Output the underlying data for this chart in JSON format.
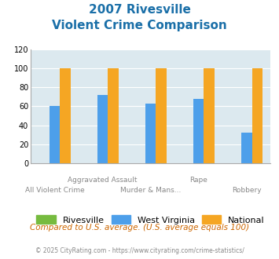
{
  "title_line1": "2007 Rivesville",
  "title_line2": "Violent Crime Comparison",
  "categories": [
    "All Violent Crime",
    "Aggravated Assault",
    "Murder & Mans...",
    "Rape",
    "Robbery"
  ],
  "series": {
    "Rivesville": [
      0,
      0,
      0,
      0,
      0
    ],
    "West Virginia": [
      60,
      72,
      63,
      68,
      32
    ],
    "National": [
      100,
      100,
      100,
      100,
      100
    ]
  },
  "colors": {
    "Rivesville": "#76bb3f",
    "West Virginia": "#4d9fea",
    "National": "#f5a623"
  },
  "ylim": [
    0,
    120
  ],
  "yticks": [
    0,
    20,
    40,
    60,
    80,
    100,
    120
  ],
  "plot_bg": "#dce9ef",
  "title_color": "#1a6fa8",
  "footer_text": "Compared to U.S. average. (U.S. average equals 100)",
  "copyright_text": "© 2025 CityRating.com - https://www.cityrating.com/crime-statistics/",
  "footer_color": "#cc6600",
  "copyright_color": "#888888",
  "xlabel_top": [
    "",
    "Aggravated Assault",
    "",
    "Rape",
    ""
  ],
  "xlabel_bottom": [
    "All Violent Crime",
    "",
    "Murder & Mans...",
    "",
    "Robbery"
  ]
}
